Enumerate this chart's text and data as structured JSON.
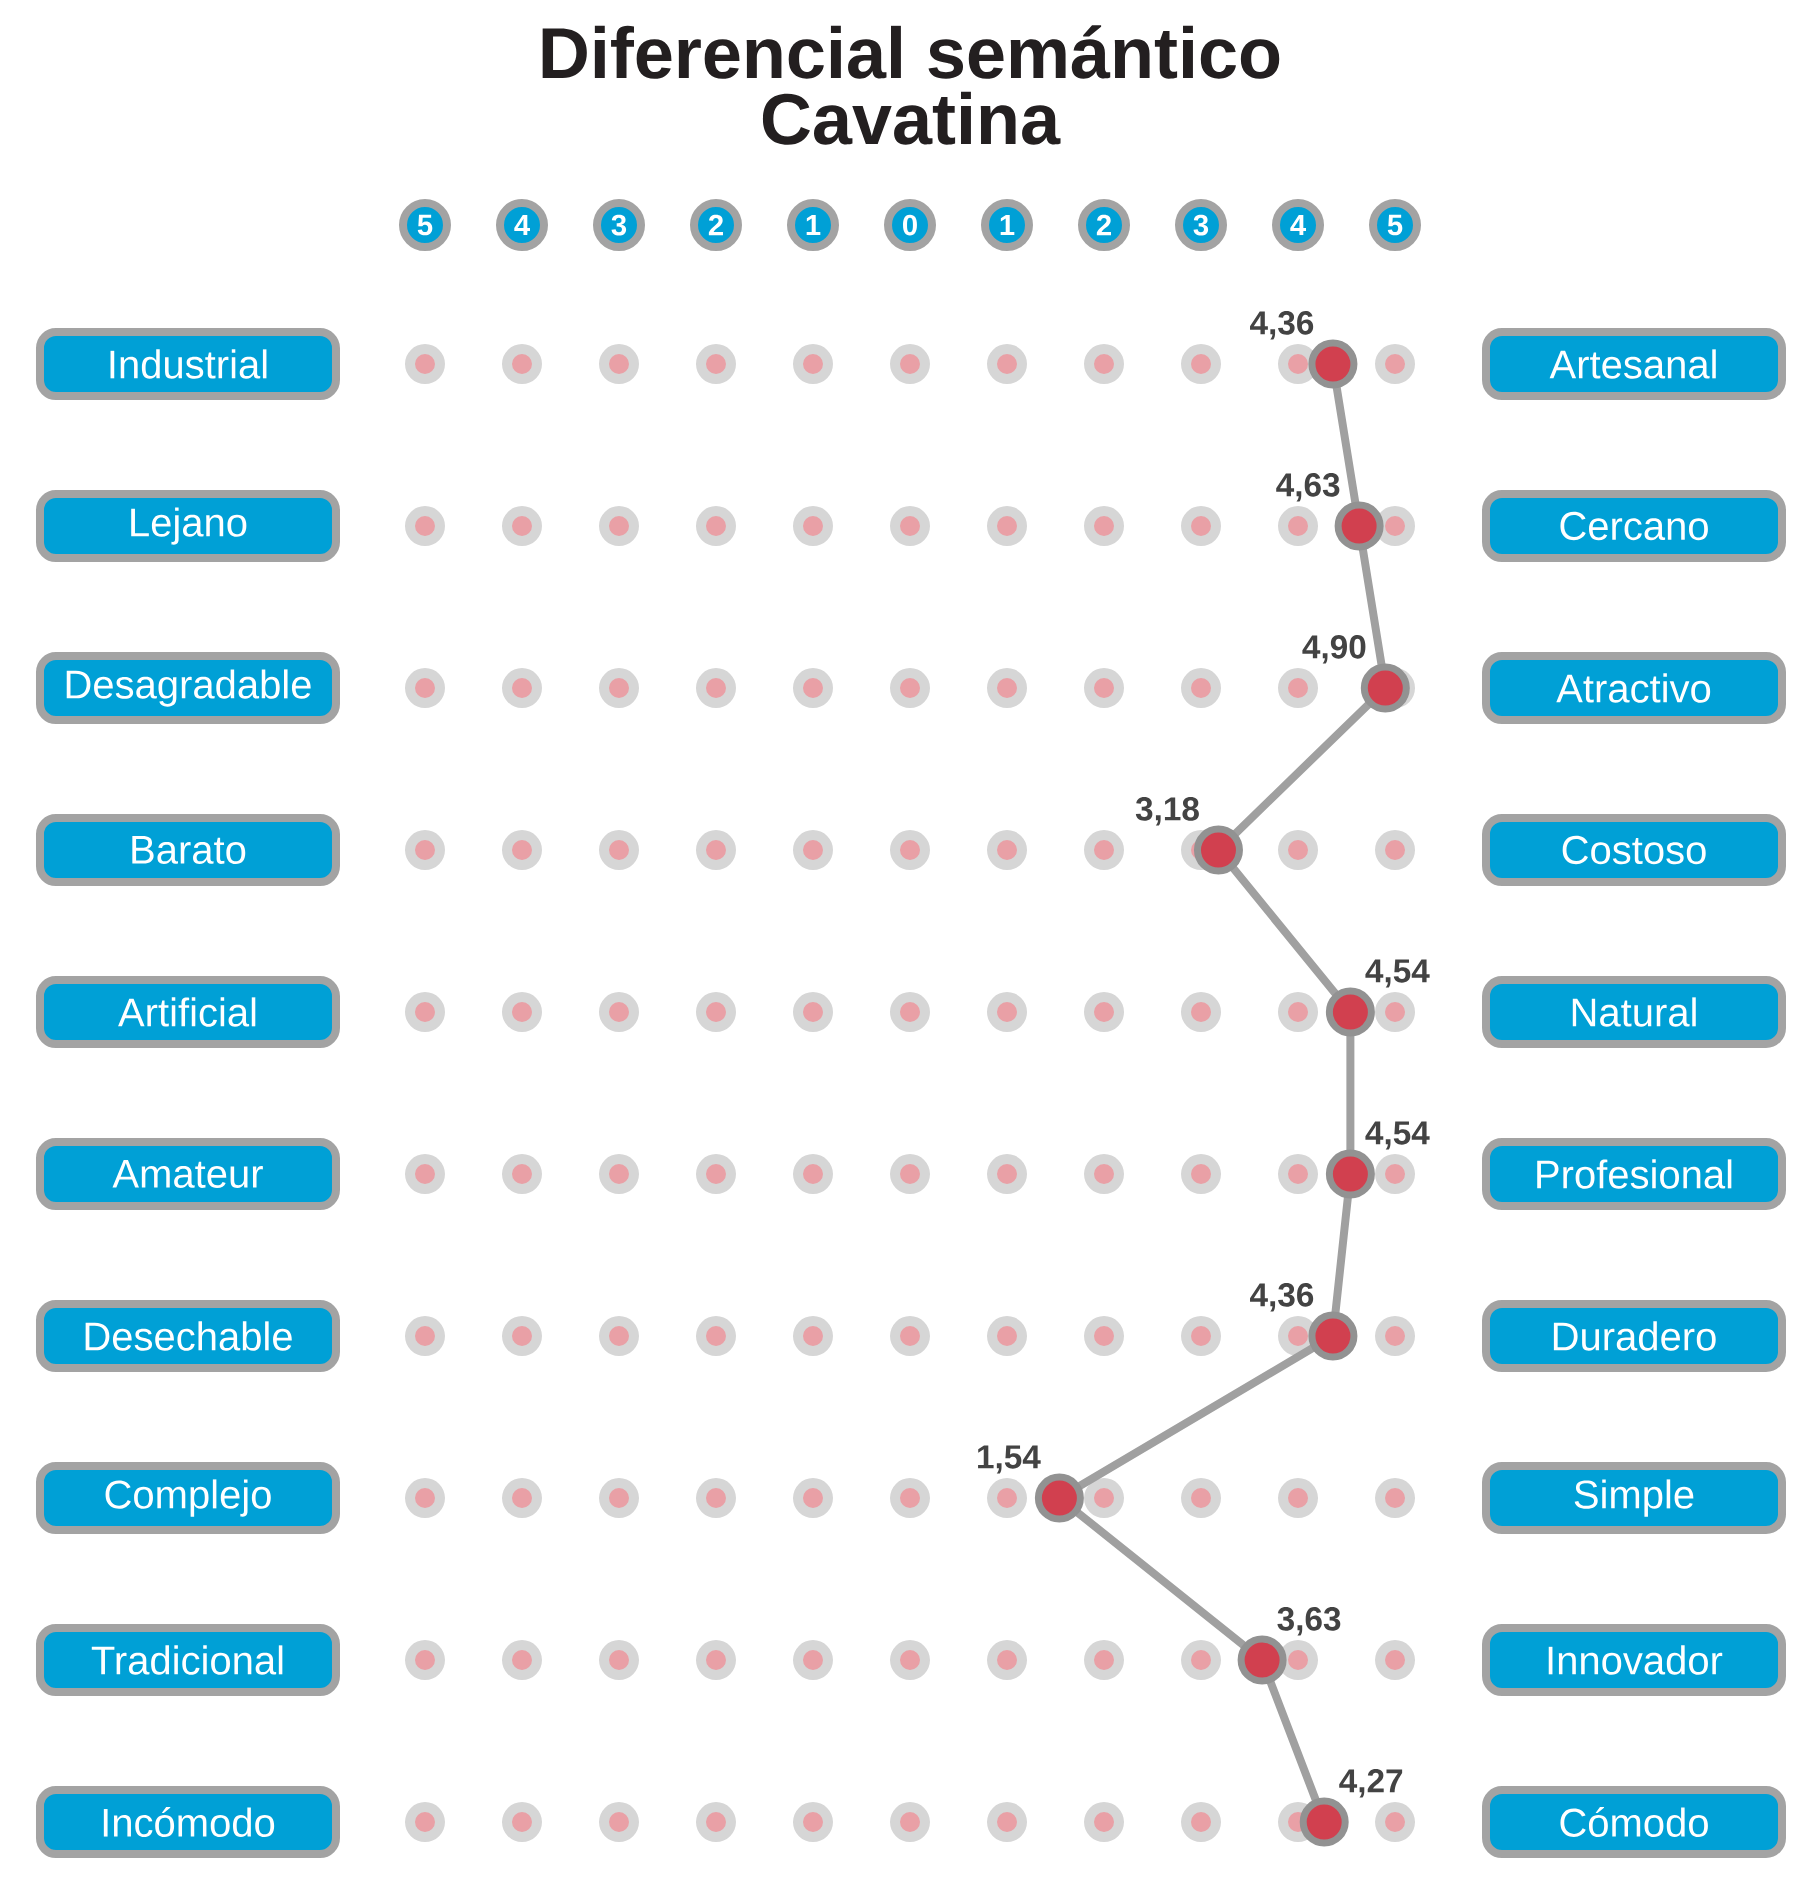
{
  "chart_data": {
    "type": "line",
    "orientation": "horizontal",
    "title": "Diferencial semántico",
    "subtitle": "Cavatina",
    "categories": [
      "Industrial",
      "Lejano",
      "Desagradable",
      "Barato",
      "Artificial",
      "Amateur",
      "Desechable",
      "Complejo",
      "Tradicional",
      "Incómodo"
    ],
    "y2_categories": [
      "Artesanal",
      "Cercano",
      "Atractivo",
      "Costoso",
      "Natural",
      "Profesional",
      "Duradero",
      "Simple",
      "Innovador",
      "Cómodo"
    ],
    "values": [
      4.36,
      4.63,
      4.9,
      3.18,
      4.54,
      4.54,
      4.36,
      1.54,
      3.63,
      4.27
    ],
    "value_labels": [
      "4,36",
      "4,63",
      "4,90",
      "3,18",
      "4,54",
      "4,54",
      "4,36",
      "1,54",
      "3,63",
      "4,27"
    ],
    "color": "#d1404f",
    "marker": "circle",
    "xlim": [
      -5,
      5
    ],
    "xticks": [
      {
        "value": -5,
        "label": "5"
      },
      {
        "value": -4,
        "label": "4"
      },
      {
        "value": -3,
        "label": "3"
      },
      {
        "value": -2,
        "label": "2"
      },
      {
        "value": -1,
        "label": "1"
      },
      0,
      1,
      2,
      3,
      4,
      5
    ]
  }
}
